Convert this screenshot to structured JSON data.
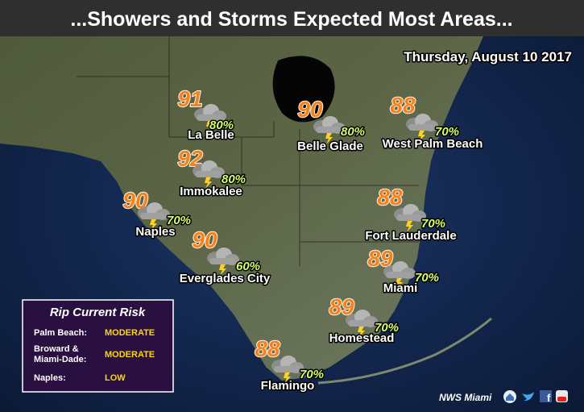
{
  "header": {
    "title": "...Showers and Storms Expected Most Areas...",
    "date": "Thursday, August 10 2017"
  },
  "cities": [
    {
      "name": "La Belle",
      "temp": 91,
      "chance": "80%"
    },
    {
      "name": "Belle Glade",
      "temp": 90,
      "chance": "80%"
    },
    {
      "name": "West Palm Beach",
      "temp": 88,
      "chance": "70%"
    },
    {
      "name": "Immokalee",
      "temp": 92,
      "chance": "80%"
    },
    {
      "name": "Naples",
      "temp": 90,
      "chance": "70%"
    },
    {
      "name": "Everglades City",
      "temp": 90,
      "chance": "60%"
    },
    {
      "name": "Fort Lauderdale",
      "temp": 88,
      "chance": "70%"
    },
    {
      "name": "Miami",
      "temp": 89,
      "chance": "70%"
    },
    {
      "name": "Homestead",
      "temp": 89,
      "chance": "70%"
    },
    {
      "name": "Flamingo",
      "temp": 88,
      "chance": "70%"
    }
  ],
  "rip_current": {
    "title": "Rip Current Risk",
    "rows": [
      {
        "area": "Palm Beach:",
        "risk": "MODERATE"
      },
      {
        "area": [
          "Broward &",
          "Miami-Dade:"
        ],
        "risk": "MODERATE"
      },
      {
        "area": "Naples:",
        "risk": "LOW"
      }
    ]
  },
  "footer": {
    "credit": "NWS Miami"
  }
}
